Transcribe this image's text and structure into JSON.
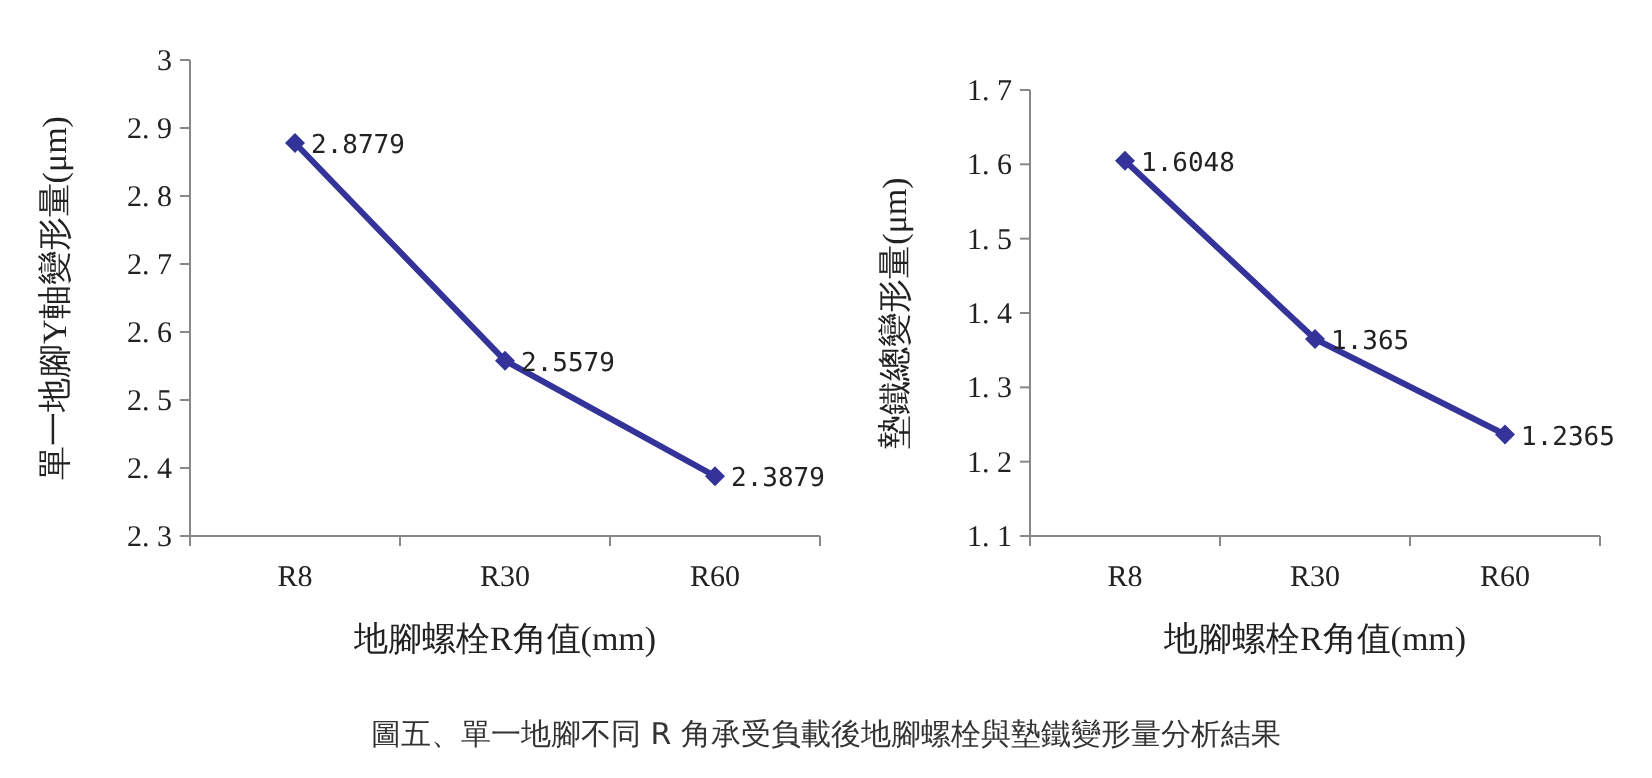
{
  "chart_data": [
    {
      "type": "line",
      "xlabel": "地腳螺栓R角值(mm)",
      "ylabel": "單一地腳Y軸變形量(μm)",
      "categories": [
        "R8",
        "R30",
        "R60"
      ],
      "series": [
        {
          "color": "#333399",
          "values": [
            2.8779,
            2.5579,
            2.3879
          ]
        }
      ],
      "ylim": [
        2.3,
        3
      ],
      "yticks": [
        2.3,
        2.4,
        2.5,
        2.6,
        2.7,
        2.8,
        2.9,
        3
      ],
      "data_labels": true,
      "marker": "diamond",
      "grid": false,
      "annotations": [
        "圖五、單一地腳不同 R 角承受負載後地腳螺栓與墊鐵變形量分析結果"
      ]
    },
    {
      "type": "line",
      "xlabel": "地腳螺栓R角值(mm)",
      "ylabel": "墊鐵總變形量(μm)",
      "categories": [
        "R8",
        "R30",
        "R60"
      ],
      "series": [
        {
          "color": "#333399",
          "values": [
            1.6048,
            1.365,
            1.2365
          ]
        }
      ],
      "ylim": [
        1.1,
        1.7
      ],
      "yticks": [
        1.1,
        1.2,
        1.3,
        1.4,
        1.5,
        1.6,
        1.7
      ],
      "data_labels": true,
      "marker": "diamond",
      "grid": false
    }
  ]
}
